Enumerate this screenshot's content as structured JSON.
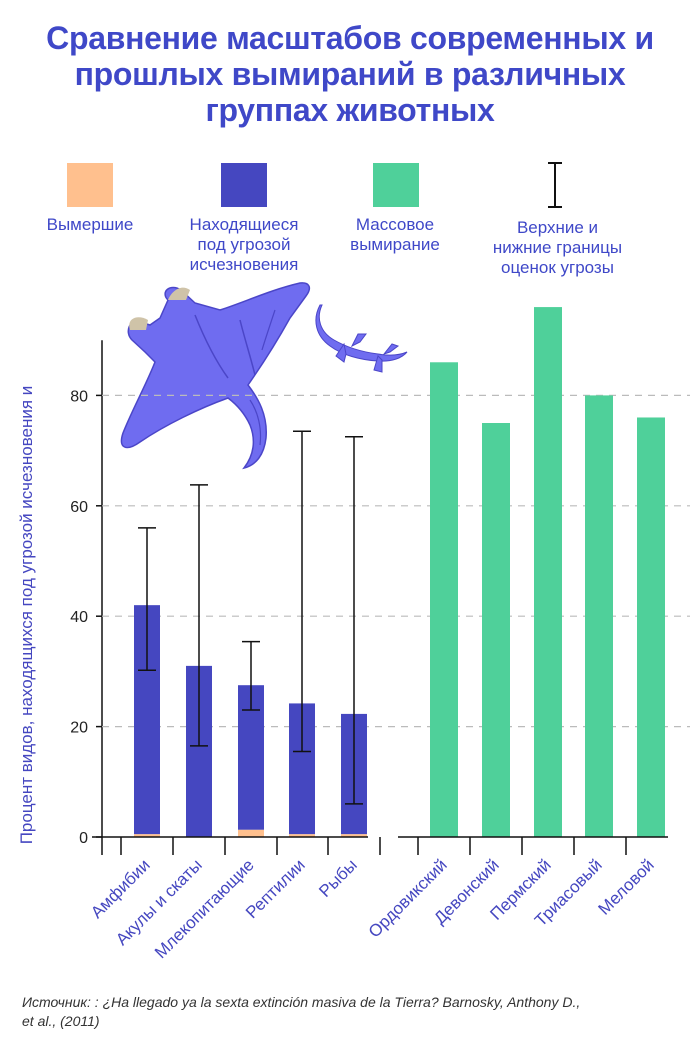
{
  "title": [
    "Сравнение масштабов современных и",
    "прошлых вымираний в различных",
    "группах животных"
  ],
  "legend": [
    {
      "key": "extinct",
      "label": [
        "Вымершие"
      ],
      "color": "#ffc08e"
    },
    {
      "key": "threatened",
      "label": [
        "Находящиеся",
        "под угрозой",
        "исчезновения"
      ],
      "color": "#4547c0"
    },
    {
      "key": "mass",
      "label": [
        "Массовое",
        "вымирание"
      ],
      "color": "#4fd09a"
    },
    {
      "key": "bounds",
      "label": [
        "Верхние и",
        "нижние границы",
        "оценок угрозы"
      ],
      "icon": "error-bar-icon"
    }
  ],
  "illustrations": [
    "manta-ray-icon",
    "lizard-icon"
  ],
  "source": "Источник: : ¿Ha llegado ya la sexta extinción masiva de la Tierra? Barnosky, Anthony D., et al., (2011)",
  "chart_data": {
    "type": "bar",
    "ylabel": "Процент видов, находящихся под угрозой исчезновения и",
    "ylim": [
      0,
      100
    ],
    "yticks": [
      0,
      20,
      40,
      60,
      80
    ],
    "grid": "horizontal dashed",
    "categories": [
      "Амфибии",
      "Акулы и скаты",
      "Млекопитающие",
      "Рептилии",
      "Рыбы",
      "Ордовикский",
      "Девонский",
      "Пермский",
      "Триасовый",
      "Меловой"
    ],
    "series": [
      {
        "name": "Вымершие",
        "values": [
          0.5,
          0,
          1.3,
          0.5,
          0.5,
          null,
          null,
          null,
          null,
          null
        ]
      },
      {
        "name": "Находящиеся под угрозой исчезновения",
        "values": [
          41.5,
          31,
          26.2,
          23.7,
          21.8,
          null,
          null,
          null,
          null,
          null
        ]
      },
      {
        "name": "Массовое вымирание",
        "values": [
          null,
          null,
          null,
          null,
          null,
          86,
          75,
          96,
          80,
          76
        ]
      }
    ],
    "error_bars": [
      {
        "category": "Амфибии",
        "low": 30.2,
        "high": 56
      },
      {
        "category": "Акулы и скаты",
        "low": 16.5,
        "high": 63.8
      },
      {
        "category": "Млекопитающие",
        "low": 23,
        "high": 35.4
      },
      {
        "category": "Рептилии",
        "low": 15.5,
        "high": 73.5
      },
      {
        "category": "Рыбы",
        "low": 6,
        "high": 72.5
      }
    ]
  }
}
